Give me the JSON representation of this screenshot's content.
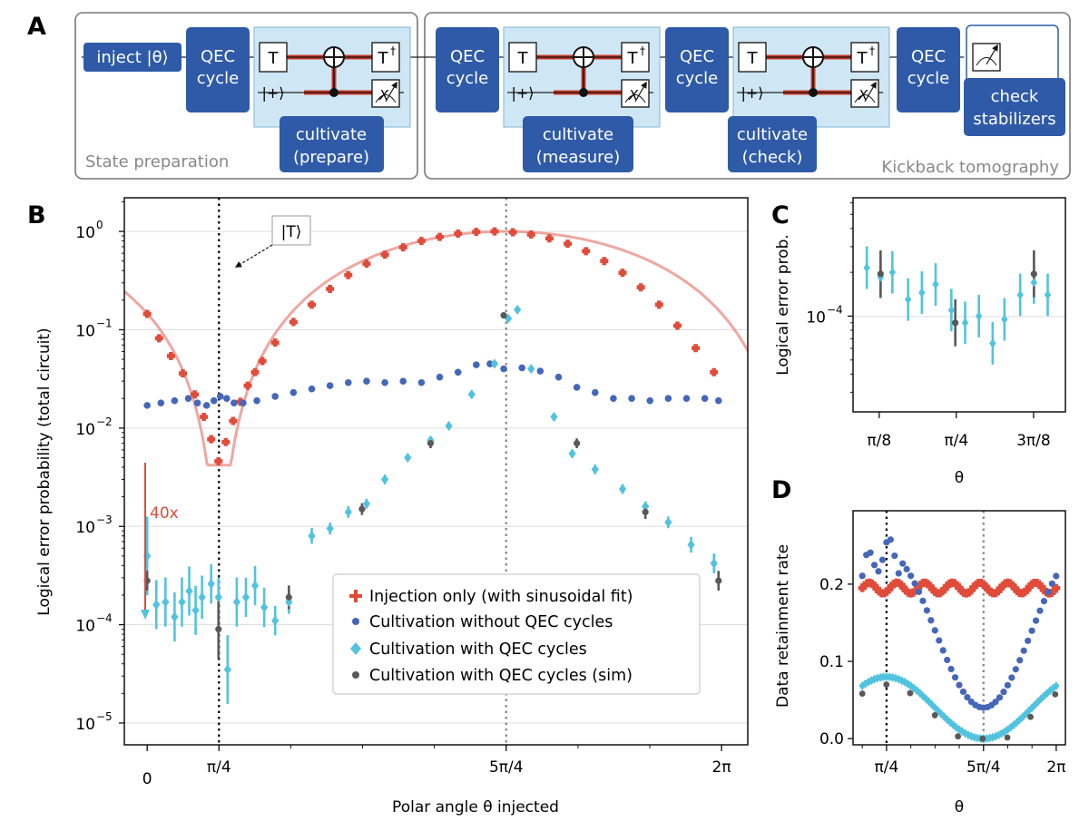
{
  "colors": {
    "red": "#e04b3a",
    "blue": "#4567b8",
    "cyan": "#52c3df",
    "gray": "#595959",
    "navy": "#2f5aa8",
    "lightblue": "#cfe7f5"
  },
  "panel_a": {
    "label": "A",
    "inject": "inject |θ⟩",
    "qec": [
      "QEC",
      "cycle"
    ],
    "gate_t": "T",
    "gate_tdag": "T",
    "dagger": "†",
    "plus": "|+⟩",
    "meas_x": "X",
    "cult_prepare": [
      "cultivate",
      "(prepare)"
    ],
    "cult_measure": [
      "cultivate",
      "(measure)"
    ],
    "cult_check": [
      "cultivate",
      "(check)"
    ],
    "check_stab": [
      "check",
      "stabilizers"
    ],
    "state_prep": "State preparation",
    "kickback": "Kickback tomography"
  },
  "chart_data": [
    {
      "panel": "B",
      "type": "scatter",
      "label": "B",
      "xlabel": "Polar angle θ injected",
      "ylabel": "Logical error probability (total circuit)",
      "yscale": "log",
      "ylim": [
        6e-06,
        2.2
      ],
      "xlim": [
        -0.25,
        6.57
      ],
      "xtick_labels": [
        {
          "x": 0,
          "label": "0"
        },
        {
          "x": 0.785,
          "label": "π/4"
        },
        {
          "x": 3.927,
          "label": "5π/4"
        },
        {
          "x": 6.283,
          "label": "2π"
        }
      ],
      "ytick_labels": [
        {
          "y": 1,
          "label": "10",
          "exp": "0"
        },
        {
          "y": 0.1,
          "label": "10",
          "exp": "−1"
        },
        {
          "y": 0.01,
          "label": "10",
          "exp": "−2"
        },
        {
          "y": 0.001,
          "label": "10",
          "exp": "−3"
        },
        {
          "y": 0.0001,
          "label": "10",
          "exp": "−4"
        },
        {
          "y": 1e-05,
          "label": "10",
          "exp": "−5"
        }
      ],
      "vlines": [
        {
          "x": 0.785,
          "style": "black-dotted"
        },
        {
          "x": 3.927,
          "style": "gray-dotted"
        }
      ],
      "annotation_t": "|T⟩",
      "annotation_40x": "40x",
      "legend": [
        "Injection only (with sinusoidal fit)",
        "Cultivation without QEC cycles",
        "Cultivation with QEC cycles",
        "Cultivation with QEC cycles (sim)"
      ],
      "injection": {
        "x": [
          0,
          0.13,
          0.26,
          0.39,
          0.52,
          0.62,
          0.7,
          0.78,
          0.86,
          0.94,
          1.02,
          1.1,
          1.18,
          1.26,
          1.4,
          1.6,
          1.8,
          2.0,
          2.2,
          2.4,
          2.6,
          2.8,
          3.0,
          3.2,
          3.4,
          3.6,
          3.8,
          4.0,
          4.2,
          4.4,
          4.6,
          4.8,
          5.0,
          5.2,
          5.4,
          5.6,
          5.8,
          6.0,
          6.2
        ],
        "y": [
          0.145,
          0.082,
          0.054,
          0.036,
          0.022,
          0.013,
          0.0077,
          0.0046,
          0.0072,
          0.0118,
          0.0185,
          0.027,
          0.037,
          0.048,
          0.074,
          0.12,
          0.18,
          0.26,
          0.36,
          0.47,
          0.58,
          0.69,
          0.8,
          0.88,
          0.95,
          0.99,
          1.0,
          0.98,
          0.93,
          0.85,
          0.75,
          0.63,
          0.5,
          0.38,
          0.27,
          0.18,
          0.11,
          0.065,
          0.037
        ]
      },
      "without_qec": {
        "x": [
          0,
          0.15,
          0.3,
          0.45,
          0.55,
          0.65,
          0.73,
          0.8,
          0.87,
          0.95,
          1.05,
          1.2,
          1.4,
          1.6,
          1.8,
          2.0,
          2.2,
          2.4,
          2.6,
          2.8,
          3.0,
          3.2,
          3.4,
          3.6,
          3.75,
          3.9,
          4.1,
          4.3,
          4.5,
          4.7,
          4.9,
          5.1,
          5.3,
          5.5,
          5.7,
          5.9,
          6.1,
          6.25
        ],
        "y": [
          0.017,
          0.018,
          0.019,
          0.02,
          0.018,
          0.017,
          0.019,
          0.021,
          0.02,
          0.018,
          0.018,
          0.019,
          0.021,
          0.023,
          0.025,
          0.027,
          0.029,
          0.03,
          0.029,
          0.03,
          0.029,
          0.033,
          0.037,
          0.044,
          0.045,
          0.04,
          0.041,
          0.038,
          0.033,
          0.026,
          0.023,
          0.02,
          0.02,
          0.019,
          0.02,
          0.02,
          0.02,
          0.019
        ]
      },
      "with_qec": {
        "x": [
          0,
          0.1,
          0.2,
          0.3,
          0.38,
          0.46,
          0.53,
          0.6,
          0.7,
          0.78,
          0.88,
          0.98,
          1.08,
          1.18,
          1.28,
          1.4,
          1.55,
          1.8,
          2.0,
          2.2,
          2.4,
          2.6,
          2.85,
          3.1,
          3.3,
          3.55,
          3.8,
          3.95,
          4.05,
          4.2,
          4.45,
          4.65,
          4.9,
          5.2,
          5.45,
          5.7,
          5.95,
          6.2
        ],
        "y": [
          0.0005,
          0.00016,
          0.00017,
          0.00012,
          0.00017,
          0.00022,
          0.00014,
          0.00019,
          0.00026,
          0.00019,
          3.5e-05,
          0.00017,
          0.00019,
          0.00025,
          0.00015,
          0.00011,
          0.00017,
          0.0008,
          0.00095,
          0.0014,
          0.0017,
          0.003,
          0.005,
          0.0075,
          0.0105,
          0.022,
          0.045,
          0.13,
          0.16,
          0.04,
          0.013,
          0.0055,
          0.0038,
          0.0024,
          0.0016,
          0.0011,
          0.00065,
          0.00042
        ]
      },
      "with_qec_err": [
        [
          0,
          0.4
        ],
        [
          0.1,
          0.25
        ],
        [
          0.2,
          0.25
        ],
        [
          0.3,
          0.25
        ],
        [
          0.38,
          0.25
        ],
        [
          0.46,
          0.25
        ],
        [
          0.53,
          0.25
        ],
        [
          0.6,
          0.22
        ],
        [
          0.7,
          0.2
        ],
        [
          0.78,
          0.2
        ],
        [
          0.88,
          0.35
        ],
        [
          0.98,
          0.25
        ],
        [
          1.08,
          0.2
        ],
        [
          1.18,
          0.2
        ],
        [
          1.28,
          0.2
        ],
        [
          1.4,
          0.15
        ],
        [
          1.55,
          0.12
        ],
        [
          1.8,
          0.08
        ],
        [
          2.0,
          0.06
        ],
        [
          2.2,
          0.06
        ],
        [
          2.4,
          0.05
        ],
        [
          2.6,
          0.05
        ],
        [
          2.85,
          0.04
        ],
        [
          3.1,
          0.04
        ],
        [
          3.3,
          0.04
        ],
        [
          3.55,
          0.04
        ],
        [
          3.8,
          0.03
        ],
        [
          3.95,
          0.03
        ],
        [
          4.05,
          0.03
        ],
        [
          4.2,
          0.03
        ],
        [
          4.45,
          0.04
        ],
        [
          4.65,
          0.04
        ],
        [
          4.9,
          0.05
        ],
        [
          5.2,
          0.05
        ],
        [
          5.45,
          0.05
        ],
        [
          5.7,
          0.06
        ],
        [
          5.95,
          0.08
        ],
        [
          6.2,
          0.1
        ]
      ],
      "sim": {
        "x": [
          0,
          0.78,
          1.55,
          2.35,
          3.1,
          3.9,
          4.7,
          5.45,
          6.25
        ],
        "y": [
          0.00028,
          9e-05,
          0.00019,
          0.0015,
          0.007,
          0.14,
          0.007,
          0.0014,
          0.00028
        ]
      },
      "sim_err": [
        0.1,
        0.3,
        0.12,
        0.06,
        0.05,
        0.03,
        0.05,
        0.07,
        0.1
      ]
    },
    {
      "panel": "C",
      "type": "scatter",
      "label": "C",
      "xlabel": "θ",
      "ylabel": "Logical error prob.",
      "yscale": "log",
      "xtick_labels": [
        {
          "x": 0.393,
          "label": "π/8"
        },
        {
          "x": 0.785,
          "label": "π/4"
        },
        {
          "x": 1.178,
          "label": "3π/8"
        }
      ],
      "ytick_labels": [
        {
          "y": 0.0001,
          "label": "10",
          "exp": "−4"
        }
      ],
      "with_qec": {
        "x": [
          0.33,
          0.4,
          0.46,
          0.54,
          0.61,
          0.68,
          0.76,
          0.83,
          0.9,
          0.97,
          1.03,
          1.11,
          1.18,
          1.25
        ],
        "y": [
          0.000215,
          0.000185,
          0.0002,
          0.00013,
          0.000145,
          0.000165,
          0.00011,
          9e-05,
          0.0001,
          6.5e-05,
          9.5e-05,
          0.00014,
          0.00017,
          0.00014
        ]
      },
      "sim": {
        "x": [
          0.4,
          0.78,
          1.18
        ],
        "y": [
          0.000195,
          9e-05,
          0.000195
        ]
      }
    },
    {
      "panel": "D",
      "type": "scatter",
      "label": "D",
      "xlabel": "θ",
      "ylabel": "Data retainment rate",
      "xtick_labels": [
        {
          "x": 0.785,
          "label": "π/4"
        },
        {
          "x": 3.927,
          "label": "5π/4"
        },
        {
          "x": 6.283,
          "label": "2π"
        }
      ],
      "ytick_labels": [
        {
          "y": 0,
          "label": "0.0"
        },
        {
          "y": 0.1,
          "label": "0.1"
        },
        {
          "y": 0.2,
          "label": "0.2"
        }
      ],
      "ylim": [
        -0.008,
        0.295
      ]
    }
  ]
}
